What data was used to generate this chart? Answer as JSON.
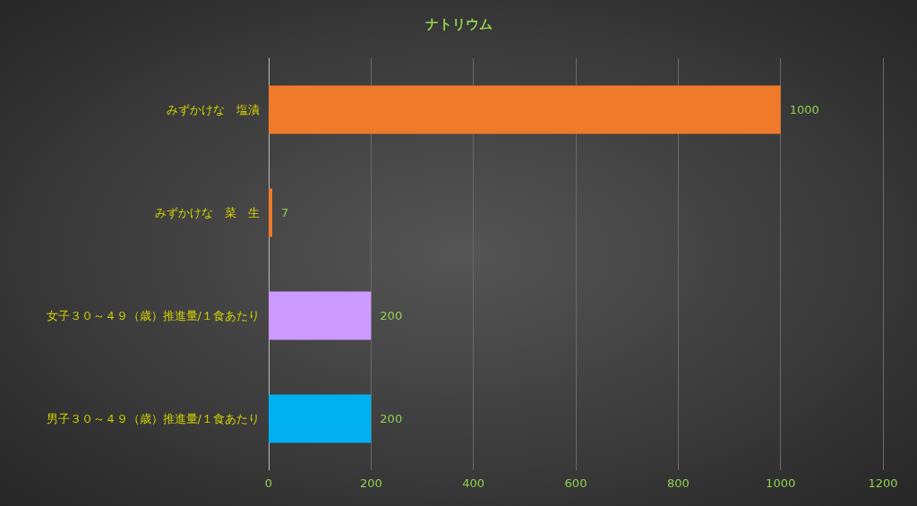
{
  "chart_data": {
    "type": "bar",
    "orientation": "horizontal",
    "title": "ナトリウム",
    "categories": [
      "みずかけな　塩漬",
      "みずかけな　菜　生",
      "女子３０～４９（歳）推進量/１食あたり",
      "男子３０～４９（歳）推進量/１食あたり"
    ],
    "values": [
      1000,
      7,
      200,
      200
    ],
    "colors": [
      "#f07a2a",
      "#f07a2a",
      "#cc99ff",
      "#00b0f0"
    ],
    "xlim": [
      0,
      1200
    ],
    "xticks": [
      0,
      200,
      400,
      600,
      800,
      1000,
      1200
    ],
    "grid": "x",
    "data_labels": true
  }
}
